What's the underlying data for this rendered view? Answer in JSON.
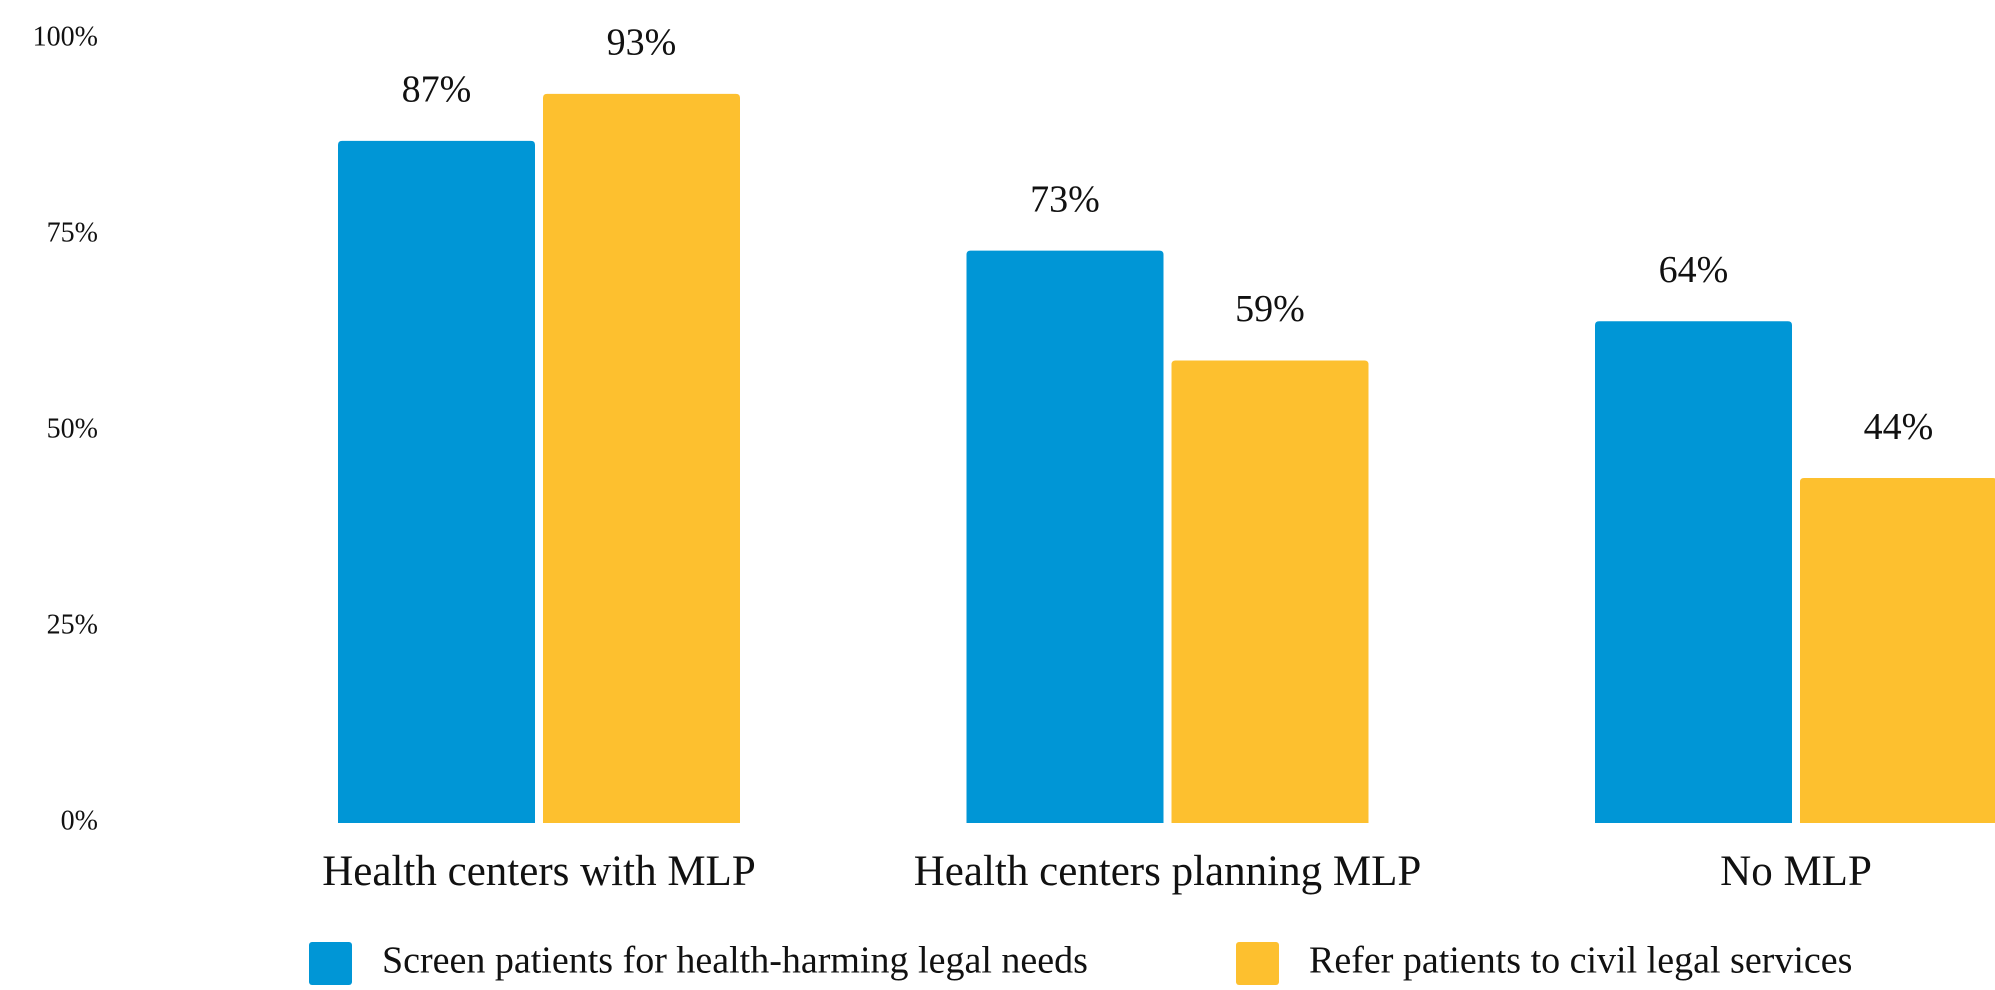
{
  "chart_data": {
    "type": "bar",
    "categories": [
      "Health centers with MLP",
      "Health centers planning MLP",
      "No MLP"
    ],
    "series": [
      {
        "name": "Screen patients for health-harming legal needs",
        "color": "#0096d6",
        "values": [
          87,
          73,
          64
        ],
        "value_labels": [
          "87%",
          "73%",
          "64%"
        ]
      },
      {
        "name": "Refer patients to civil legal services",
        "color": "#fdc02f",
        "values": [
          93,
          59,
          44
        ],
        "value_labels": [
          "93%",
          "59%",
          "44%"
        ]
      }
    ],
    "ylim": [
      0,
      100
    ],
    "yticks": [
      {
        "value": 0,
        "label": "0%"
      },
      {
        "value": 25,
        "label": "25%"
      },
      {
        "value": 50,
        "label": "50%"
      },
      {
        "value": 75,
        "label": "75%"
      },
      {
        "value": 100,
        "label": "100%"
      }
    ],
    "grid": false,
    "legend": "bottom"
  }
}
